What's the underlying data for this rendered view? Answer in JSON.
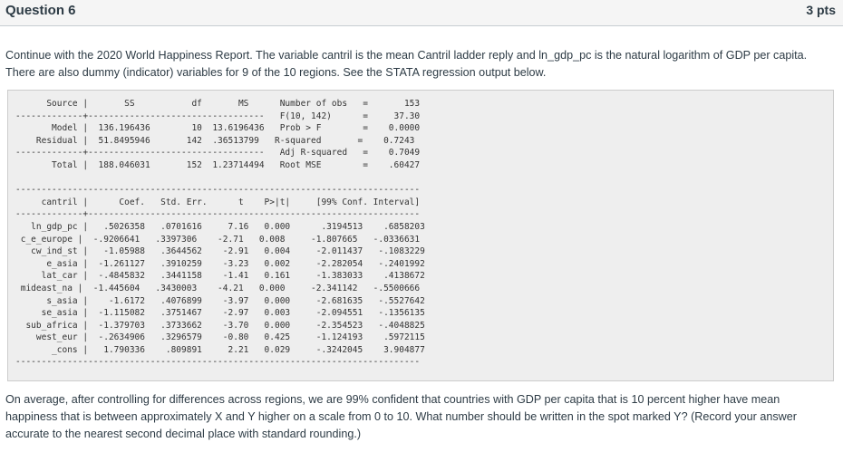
{
  "question": {
    "title": "Question 6",
    "points": "3 pts"
  },
  "intro_text": "Continue with the 2020 World Happiness Report. The variable cantril is the mean Cantril ladder reply and ln_gdp_pc is the natural logarithm of GDP per capita. There are also dummy (indicator) variables for 9 of the 10 regions. See the STATA regression output below.",
  "stata_output": [
    "      Source |       SS           df       MS      Number of obs   =       153",
    "-------------+----------------------------------   F(10, 142)      =     37.30",
    "       Model |  136.196436        10  13.6196436   Prob > F        =    0.0000",
    "    Residual |  51.8495946       142  .36513799   R-squared       =    0.7243",
    "-------------+----------------------------------   Adj R-squared   =    0.7049",
    "       Total |  188.046031       152  1.23714494   Root MSE        =    .60427",
    "",
    "------------------------------------------------------------------------------",
    "     cantril |      Coef.   Std. Err.      t    P>|t|     [99% Conf. Interval]",
    "-------------+----------------------------------------------------------------",
    "   ln_gdp_pc |   .5026358   .0701616     7.16   0.000      .3194513    .6858203",
    " c_e_europe |  -.9206641   .3397306    -2.71   0.008     -1.807665   -.0336631",
    "   cw_ind_st |   -1.05988   .3644562    -2.91   0.004     -2.011437   -.1083229",
    "      e_asia |  -1.261127   .3910259    -3.23   0.002     -2.282054   -.2401992",
    "     lat_car |  -.4845832   .3441158    -1.41   0.161     -1.383033    .4138672",
    " mideast_na |  -1.445604   .3430003    -4.21   0.000     -2.341142   -.5500666",
    "      s_asia |    -1.6172   .4076899    -3.97   0.000     -2.681635   -.5527642",
    "     se_asia |  -1.115082   .3751467    -2.97   0.003     -2.094551   -.1356135",
    "  sub_africa |  -1.379703   .3733662    -3.70   0.000     -2.354523   -.4048825",
    "    west_eur |  -.2634906   .3296579    -0.80   0.425     -1.124193    .5972115",
    "       _cons |   1.790336    .809891     2.21   0.029     -.3242045    3.904877",
    "------------------------------------------------------------------------------"
  ],
  "question_text": "On average, after controlling for differences across regions, we are 99% confident that countries with GDP per capita that is 10 percent higher have mean happiness that is between approximately X and Y higher on a scale from 0 to 10. What number should be written in the spot marked Y? (Record your answer accurate to the nearest second decimal place with standard rounding.)"
}
